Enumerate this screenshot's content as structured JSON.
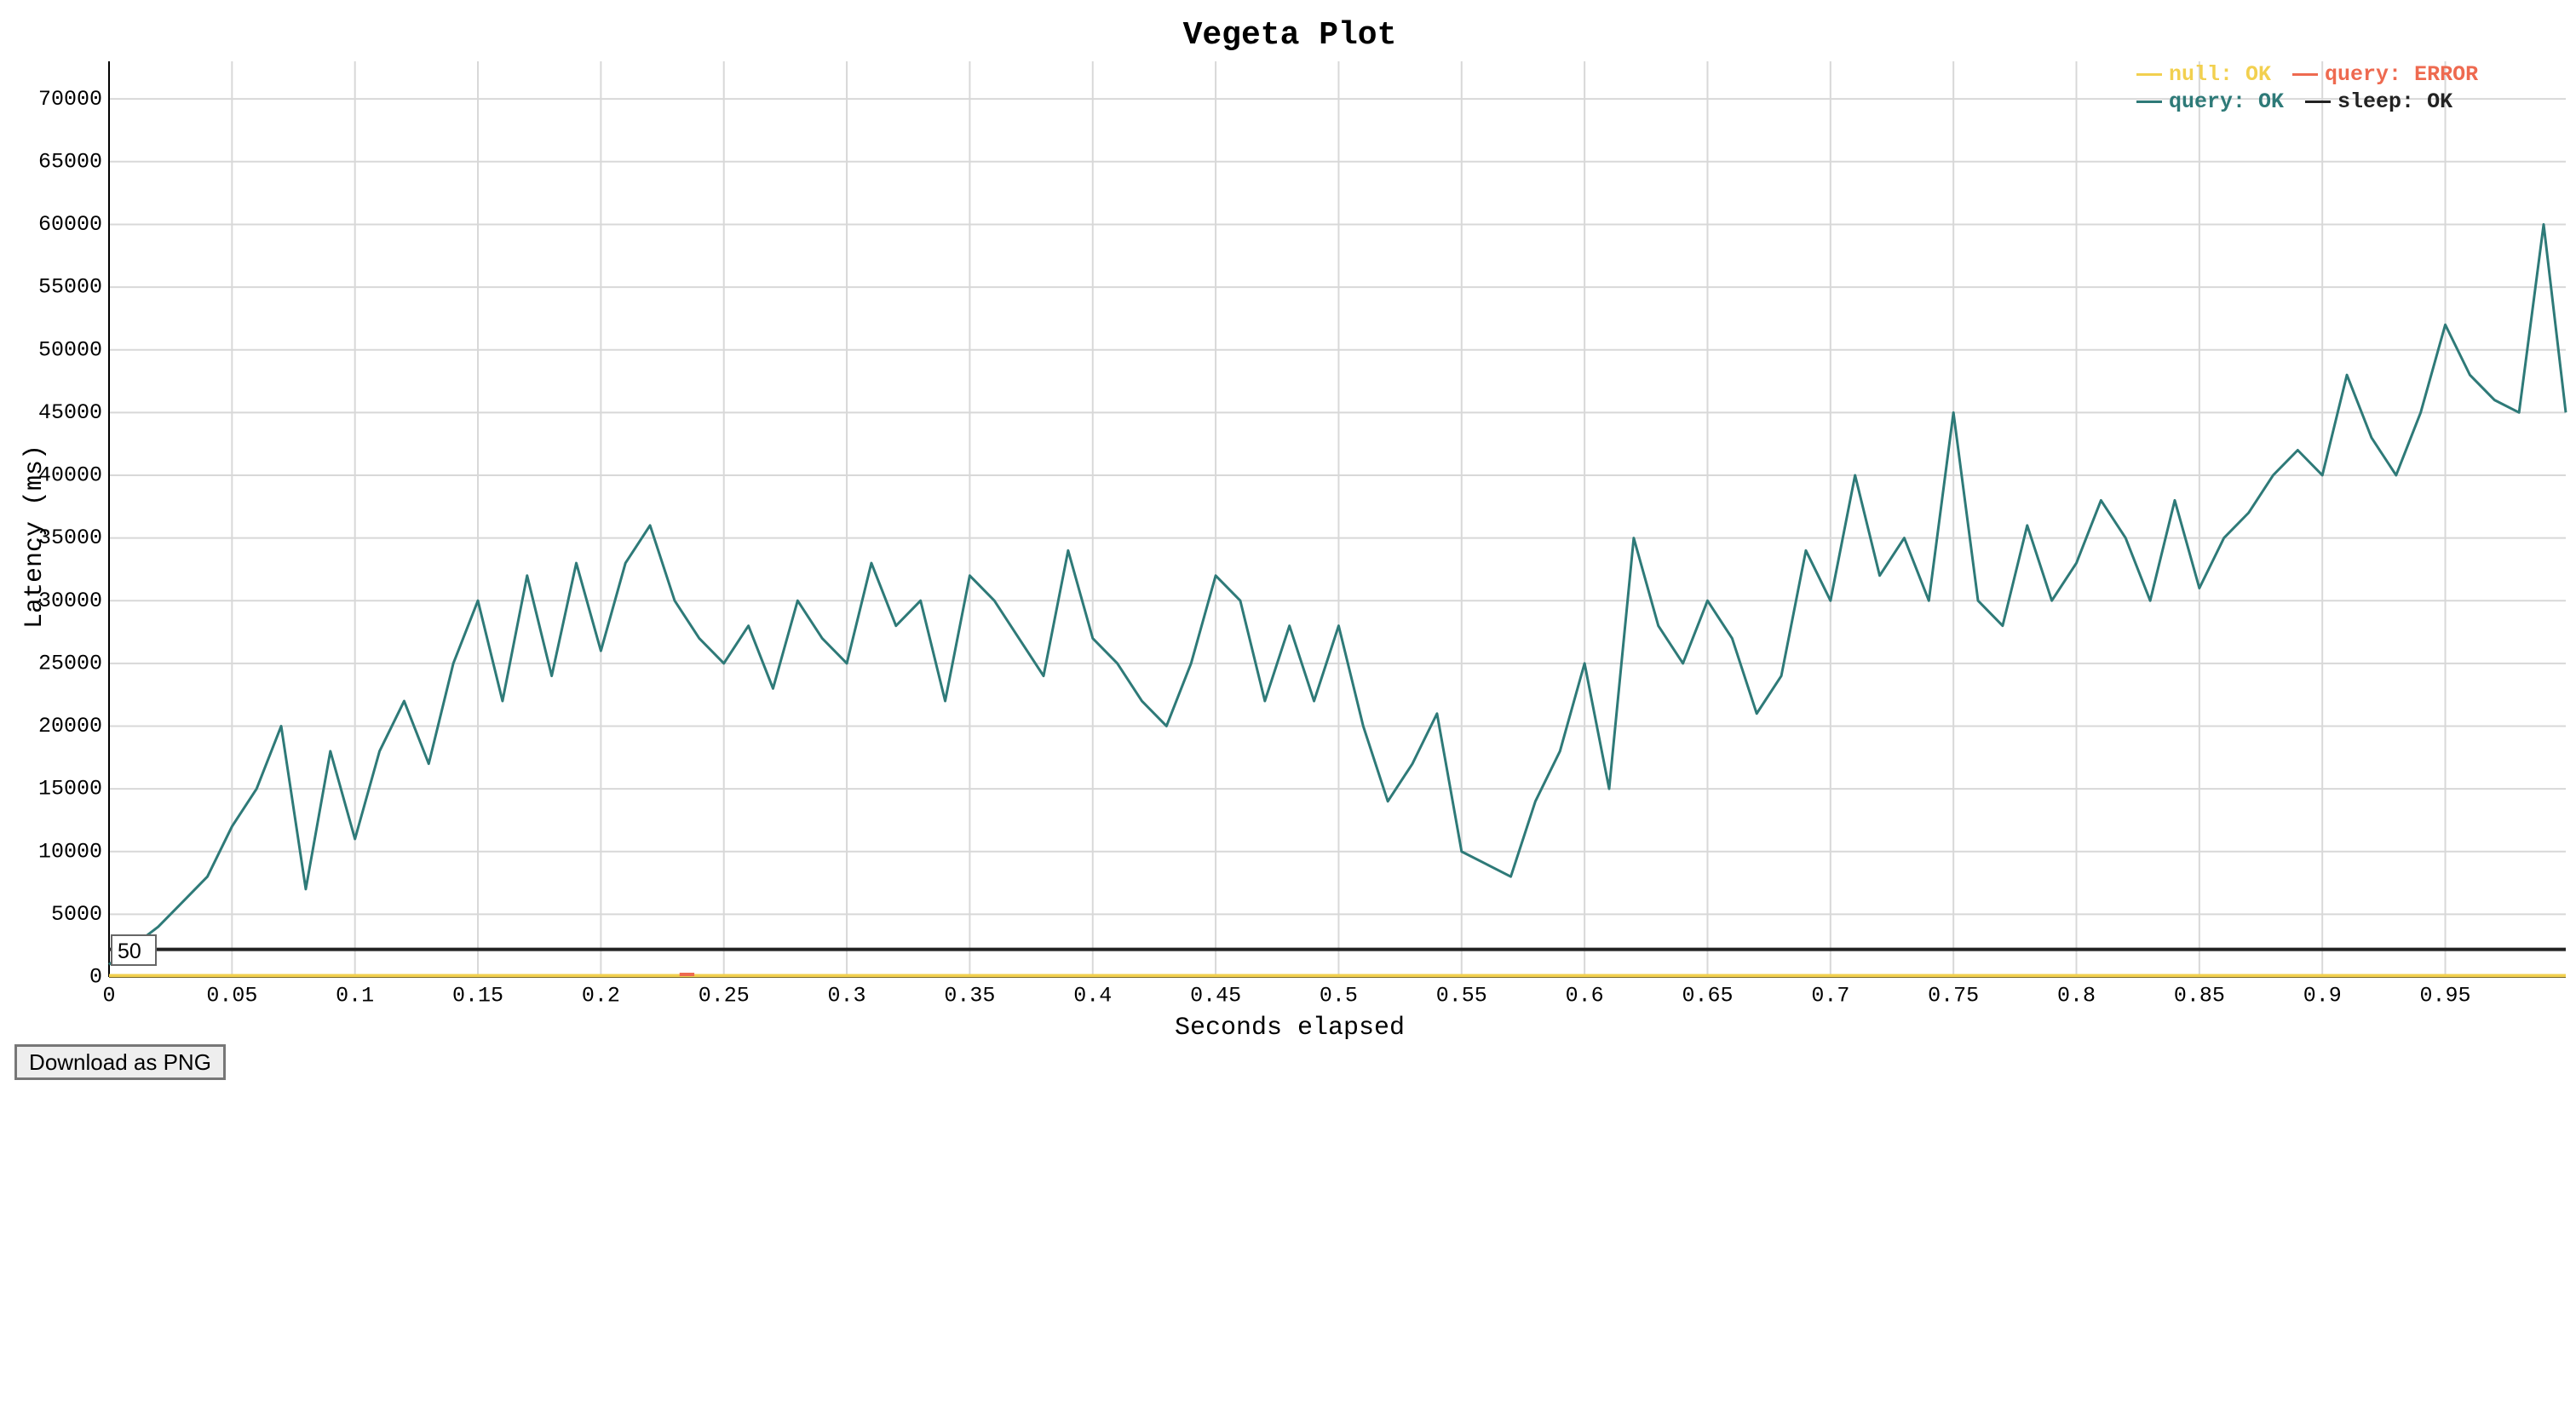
{
  "chart_data": {
    "type": "line",
    "title": "Vegeta Plot",
    "xlabel": "Seconds elapsed",
    "ylabel": "Latency (ms)",
    "xlim": [
      0,
      0.999
    ],
    "ylim": [
      0,
      73000
    ],
    "xticks": [
      0,
      0.05,
      0.1,
      0.15,
      0.2,
      0.25,
      0.3,
      0.35,
      0.4,
      0.45,
      0.5,
      0.55,
      0.6,
      0.65,
      0.7,
      0.75,
      0.8,
      0.85,
      0.9,
      0.95
    ],
    "yticks": [
      0,
      5000,
      10000,
      15000,
      20000,
      25000,
      30000,
      35000,
      40000,
      45000,
      50000,
      55000,
      60000,
      65000,
      70000
    ],
    "grid": true,
    "legend": "upper right",
    "series": [
      {
        "name": "null: OK",
        "color": "#f2d04f",
        "x": [
          0,
          0.999
        ],
        "values": [
          100,
          100
        ]
      },
      {
        "name": "query: ERROR",
        "color": "#ee6a50",
        "x": [
          0.232,
          0.238
        ],
        "values": [
          200,
          200
        ]
      },
      {
        "name": "query: OK",
        "color": "#2e7a78",
        "x": [
          0,
          0.01,
          0.02,
          0.03,
          0.04,
          0.05,
          0.06,
          0.07,
          0.08,
          0.09,
          0.1,
          0.11,
          0.12,
          0.13,
          0.14,
          0.15,
          0.16,
          0.17,
          0.18,
          0.19,
          0.2,
          0.21,
          0.22,
          0.23,
          0.24,
          0.25,
          0.26,
          0.27,
          0.28,
          0.29,
          0.3,
          0.31,
          0.32,
          0.33,
          0.34,
          0.35,
          0.36,
          0.37,
          0.38,
          0.39,
          0.4,
          0.41,
          0.42,
          0.43,
          0.44,
          0.45,
          0.46,
          0.47,
          0.48,
          0.49,
          0.5,
          0.51,
          0.52,
          0.53,
          0.54,
          0.55,
          0.56,
          0.57,
          0.58,
          0.59,
          0.6,
          0.61,
          0.62,
          0.63,
          0.64,
          0.65,
          0.66,
          0.67,
          0.68,
          0.69,
          0.7,
          0.71,
          0.72,
          0.73,
          0.74,
          0.75,
          0.76,
          0.77,
          0.78,
          0.79,
          0.8,
          0.81,
          0.82,
          0.83,
          0.84,
          0.85,
          0.86,
          0.87,
          0.88,
          0.89,
          0.9,
          0.91,
          0.92,
          0.93,
          0.94,
          0.95,
          0.96,
          0.97,
          0.98,
          0.99,
          0.999
        ],
        "values": [
          1000,
          2500,
          4000,
          6000,
          8000,
          12000,
          15000,
          20000,
          7000,
          18000,
          11000,
          18000,
          22000,
          17000,
          25000,
          30000,
          22000,
          32000,
          24000,
          33000,
          26000,
          33000,
          36000,
          30000,
          27000,
          25000,
          28000,
          23000,
          30000,
          27000,
          25000,
          33000,
          28000,
          30000,
          22000,
          32000,
          30000,
          27000,
          24000,
          34000,
          27000,
          25000,
          22000,
          20000,
          25000,
          32000,
          30000,
          22000,
          28000,
          22000,
          28000,
          20000,
          14000,
          17000,
          21000,
          10000,
          9000,
          8000,
          14000,
          18000,
          25000,
          15000,
          35000,
          28000,
          25000,
          30000,
          27000,
          21000,
          24000,
          34000,
          30000,
          40000,
          32000,
          35000,
          30000,
          45000,
          30000,
          28000,
          36000,
          30000,
          33000,
          38000,
          35000,
          30000,
          38000,
          31000,
          35000,
          37000,
          40000,
          42000,
          40000,
          48000,
          43000,
          40000,
          45000,
          52000,
          48000,
          46000,
          45000,
          60000,
          45000
        ]
      },
      {
        "name": "sleep: OK",
        "color": "#222222",
        "x": [
          0,
          0.999
        ],
        "values": [
          2200,
          2200
        ]
      }
    ],
    "roll_period": "50",
    "button": "Download as PNG"
  }
}
